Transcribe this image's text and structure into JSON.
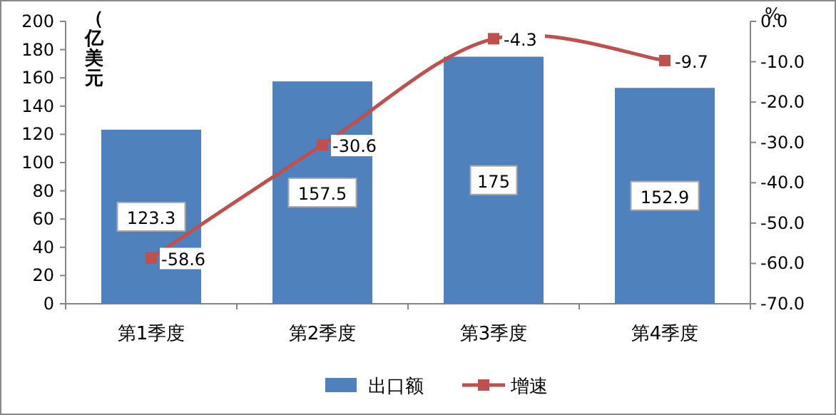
{
  "chart_data": {
    "type": "bar",
    "categories": [
      "第1季度",
      "第2季度",
      "第3季度",
      "第4季度"
    ],
    "series": [
      {
        "name": "出口额",
        "color": "#4f81bd",
        "values": [
          123.3,
          157.5,
          175,
          152.9
        ]
      },
      {
        "name": "增速",
        "type": "line",
        "axis": "y2",
        "color": "#c0504d",
        "values": [
          -58.6,
          -30.6,
          -4.3,
          -9.7
        ]
      }
    ],
    "ylabel": "（亿美元",
    "y2label": "%",
    "ylim": [
      0,
      200
    ],
    "yticks": [
      0,
      20,
      40,
      60,
      80,
      100,
      120,
      140,
      160,
      180,
      200
    ],
    "y2lim": [
      -70,
      0
    ],
    "y2ticks": [
      {
        "value": 0,
        "label": "0.0"
      },
      {
        "value": -10,
        "label": "-10.0"
      },
      {
        "value": -20,
        "label": "-20.0"
      },
      {
        "value": -30,
        "label": "-30.0"
      },
      {
        "value": -40,
        "label": "-40.0"
      },
      {
        "value": -50,
        "label": "-50.0"
      },
      {
        "value": -60,
        "label": "-60.0"
      },
      {
        "value": -70,
        "label": "-70.0"
      }
    ],
    "data_labels": true,
    "marker": "square",
    "legend": "bottom",
    "grid": false
  }
}
